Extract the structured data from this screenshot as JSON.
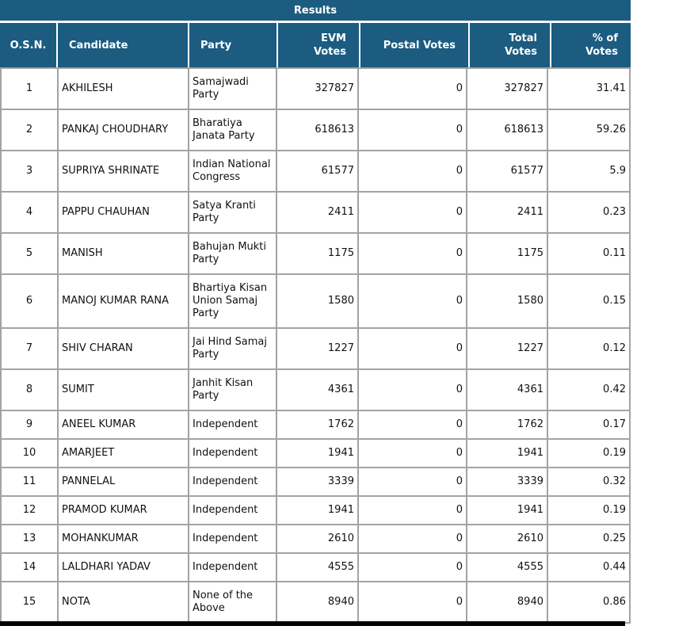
{
  "title": "Results",
  "colors": {
    "header_bg": "#1b5c80",
    "header_text": "#ffffff",
    "body_border": "#a3a3a3",
    "body_text": "#111111",
    "bottom_bar": "#050505"
  },
  "header": {
    "cells": [
      {
        "key": "osn",
        "lines": [
          "O.S.N."
        ]
      },
      {
        "key": "candidate",
        "lines": [
          "Candidate"
        ]
      },
      {
        "key": "party",
        "lines": [
          "Party"
        ]
      },
      {
        "key": "evm",
        "lines": [
          "EVM",
          "Votes"
        ]
      },
      {
        "key": "postal",
        "lines": [
          "Postal Votes"
        ]
      },
      {
        "key": "total",
        "lines": [
          "Total",
          "Votes"
        ]
      },
      {
        "key": "pct",
        "lines": [
          "% of",
          "Votes"
        ]
      }
    ]
  },
  "rows": [
    {
      "osn": "1",
      "candidate": "AKHILESH",
      "party": "Samajwadi Party",
      "evm": "327827",
      "postal": "0",
      "total": "327827",
      "pct": "31.41"
    },
    {
      "osn": "2",
      "candidate": "PANKAJ CHOUDHARY",
      "party": "Bharatiya Janata Party",
      "evm": "618613",
      "postal": "0",
      "total": "618613",
      "pct": "59.26"
    },
    {
      "osn": "3",
      "candidate": "SUPRIYA SHRINATE",
      "party": "Indian National Congress",
      "evm": "61577",
      "postal": "0",
      "total": "61577",
      "pct": "5.9"
    },
    {
      "osn": "4",
      "candidate": "PAPPU CHAUHAN",
      "party": "Satya Kranti Party",
      "evm": "2411",
      "postal": "0",
      "total": "2411",
      "pct": "0.23"
    },
    {
      "osn": "5",
      "candidate": "MANISH",
      "party": "Bahujan Mukti Party",
      "evm": "1175",
      "postal": "0",
      "total": "1175",
      "pct": "0.11"
    },
    {
      "osn": "6",
      "candidate": "MANOJ KUMAR RANA",
      "party": "Bhartiya Kisan Union Samaj Party",
      "evm": "1580",
      "postal": "0",
      "total": "1580",
      "pct": "0.15"
    },
    {
      "osn": "7",
      "candidate": "SHIV CHARAN",
      "party": "Jai Hind Samaj Party",
      "evm": "1227",
      "postal": "0",
      "total": "1227",
      "pct": "0.12"
    },
    {
      "osn": "8",
      "candidate": "SUMIT",
      "party": "Janhit Kisan Party",
      "evm": "4361",
      "postal": "0",
      "total": "4361",
      "pct": "0.42"
    },
    {
      "osn": "9",
      "candidate": "ANEEL KUMAR",
      "party": "Independent",
      "evm": "1762",
      "postal": "0",
      "total": "1762",
      "pct": "0.17"
    },
    {
      "osn": "10",
      "candidate": "AMARJEET",
      "party": "Independent",
      "evm": "1941",
      "postal": "0",
      "total": "1941",
      "pct": "0.19"
    },
    {
      "osn": "11",
      "candidate": "PANNELAL",
      "party": "Independent",
      "evm": "3339",
      "postal": "0",
      "total": "3339",
      "pct": "0.32"
    },
    {
      "osn": "12",
      "candidate": "PRAMOD KUMAR",
      "party": "Independent",
      "evm": "1941",
      "postal": "0",
      "total": "1941",
      "pct": "0.19"
    },
    {
      "osn": "13",
      "candidate": "MOHANKUMAR",
      "party": "Independent",
      "evm": "2610",
      "postal": "0",
      "total": "2610",
      "pct": "0.25"
    },
    {
      "osn": "14",
      "candidate": "LALDHARI YADAV",
      "party": "Independent",
      "evm": "4555",
      "postal": "0",
      "total": "4555",
      "pct": "0.44"
    },
    {
      "osn": "15",
      "candidate": "NOTA",
      "party": "None of the Above",
      "evm": "8940",
      "postal": "0",
      "total": "8940",
      "pct": "0.86"
    }
  ]
}
